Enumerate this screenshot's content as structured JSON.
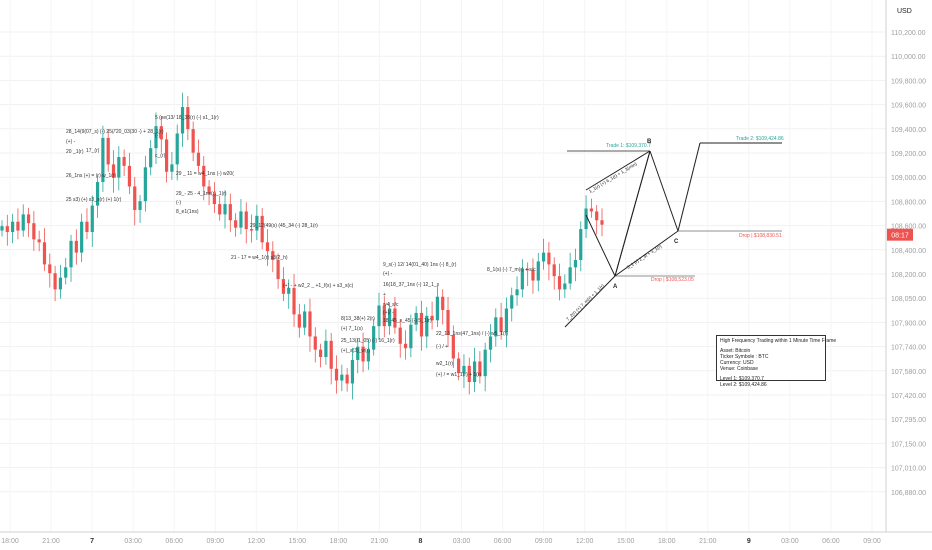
{
  "chart_data": {
    "type": "candlestick",
    "currency_label": "USD",
    "price_tag": "08:17",
    "ylim": [
      106800,
      110350
    ],
    "y_ticks": [
      "110,200.00",
      "110,000.00",
      "109,800.00",
      "109,600.00",
      "109,400.00",
      "109,200.00",
      "109,000.00",
      "108,800.00",
      "108,600.00",
      "108,400.00",
      "108,200.00",
      "108,050.00",
      "107,900.00",
      "107,740.00",
      "107,580.00",
      "107,420.00",
      "107,295.00",
      "107,150.00",
      "107,010.00",
      "106,880.00"
    ],
    "x_ticks": [
      "18:00",
      "21:00",
      "7",
      "03:00",
      "06:00",
      "09:00",
      "12:00",
      "15:00",
      "18:00",
      "21:00",
      "8",
      "03:00",
      "06:00",
      "09:00",
      "12:00",
      "15:00",
      "18:00",
      "21:00",
      "9",
      "03:00",
      "06:00",
      "09:00"
    ],
    "up_color": "#26a69a",
    "down_color": "#ef5350",
    "candles_close": [
      108880,
      108840,
      108910,
      108850,
      108960,
      108900,
      108790,
      108770,
      108620,
      108560,
      108450,
      108530,
      108600,
      108780,
      108700,
      108910,
      108840,
      109020,
      109180,
      109480,
      109300,
      109210,
      109350,
      109290,
      109150,
      108990,
      109050,
      109280,
      109410,
      109560,
      109470,
      109250,
      109300,
      109510,
      109690,
      109540,
      109380,
      109290,
      109150,
      109100,
      109030,
      108960,
      109030,
      108920,
      108870,
      108980,
      108860,
      108850,
      108950,
      108770,
      108710,
      108650,
      108520,
      108420,
      108460,
      108280,
      108190,
      108300,
      108130,
      108040,
      107990,
      108100,
      107910,
      107830,
      107870,
      107810,
      107970,
      108060,
      107960,
      108040,
      108200,
      108340,
      108200,
      108320,
      108190,
      108080,
      108050,
      108210,
      108290,
      108130,
      108270,
      108240,
      108400,
      108310,
      108140,
      107980,
      107880,
      107930,
      107820,
      107960,
      107860,
      108040,
      108130,
      108260,
      108160,
      108320,
      108410,
      108450,
      108590,
      108580,
      108510,
      108640,
      108700,
      108620,
      108540,
      108450,
      108490,
      108600,
      108650,
      108860,
      109000,
      108980,
      108920,
      108890
    ],
    "patterns": {
      "trade1_label": "Trade 1: $109,370.7",
      "trade2_label": "Trade 2: $109,424.86",
      "drop1_label": "Drop | $108,830.51",
      "drop2_label": "Drop | $108,523.05",
      "point_a": "A",
      "point_b": "B",
      "point_c": "C",
      "leg_ab_label": "1_1(r) (+) 6_1(r) + 1_3(min)",
      "leg_bc_label": "3_1 (r) 2_3t + 3_1(r)",
      "leg_xa_label": "7_2(r) (+) 7_m(r) + 1_1(r)"
    },
    "annotations": [
      "28_14(9(07_s) (-) 25(/'20_03(30 -) + 28_1(r)",
      "(+) -",
      "17_(r)",
      "20 _1(r)",
      "26_1ns (+) = (r) w_1(r)",
      "25 s3) (+) s3_s(r) (+) 1(r)",
      "5 (se(13/ 18_38(r) (-) s1_1(r)",
      "(-)",
      "c_(r)",
      "29 _ 11 = w4_1ns (-) w20(",
      "29_- 25 - 4_1ns(r)_1(r)",
      "(-)",
      "8_e1(1ns)",
      "29_12(49(s) (45_34 (-) 28_1(r)",
      "21 - 17 = w4_1(r) s3(2_h)",
      "(+) - + w2_2 _ +1_f(s) + s3_s(c)",
      "9_s(-) 12/ 14(01_40) 1ns (-) 8_(r)",
      "(+) -",
      "16(18_37_1ns (-) 12_1_s",
      "+",
      "w4_s/c",
      "(+)/ -",
      "18_45_s_45 (-) 5_1(r)",
      "8(13_38(+) 2(r)",
      "(+) 7_1(s)",
      "25_13(/1_05) (-) 16_1(r)",
      "(+)_s(3)_w(r)",
      "22_13_1ns(47_1ns) / (-) w5_1(r)",
      "(-) / +",
      "w2_1(r)",
      "(+) / = w1_1(r) + 1(r)",
      "8_1(s) (-) 7_m(r) + s/c"
    ],
    "info_box": {
      "title": "High Frequency Trading within 1 Minute Time Frame",
      "asset": "Asset: Bitcoin",
      "ticker": "Ticker Symbole : BTC",
      "currency": "Currency: USD",
      "venue": "Venue: Coinbase",
      "level1": "Level 1: $109,370.7",
      "level2": "Level 2: $109,424.86"
    }
  }
}
